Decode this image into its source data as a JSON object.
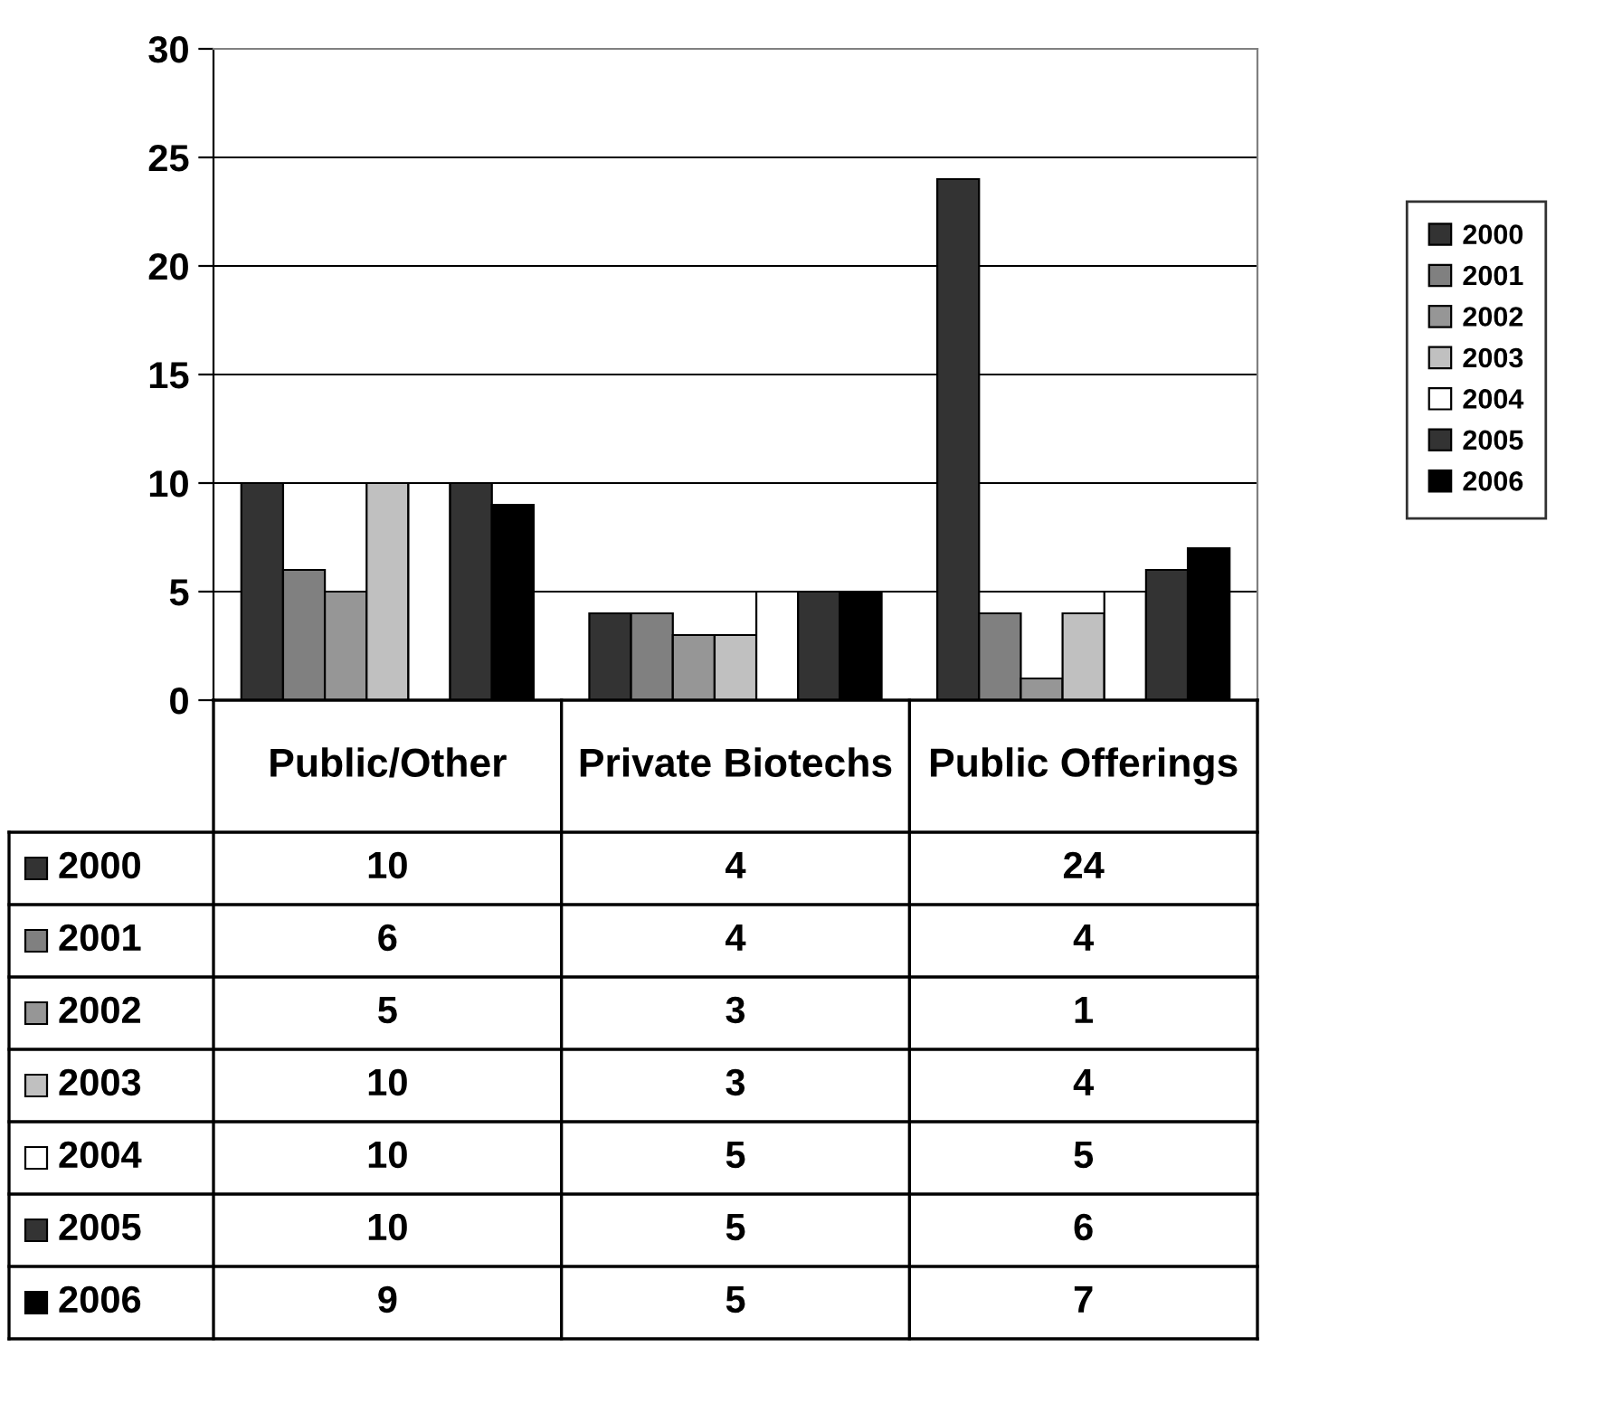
{
  "chart_data": {
    "type": "bar",
    "categories": [
      "Public/Other",
      "Private Biotechs",
      "Public Offerings"
    ],
    "series": [
      {
        "name": "2000",
        "color": "#333333",
        "values": [
          10,
          4,
          24
        ]
      },
      {
        "name": "2001",
        "color": "#808080",
        "values": [
          6,
          4,
          4
        ]
      },
      {
        "name": "2002",
        "color": "#969696",
        "values": [
          5,
          3,
          1
        ]
      },
      {
        "name": "2003",
        "color": "#c0c0c0",
        "values": [
          10,
          3,
          4
        ]
      },
      {
        "name": "2004",
        "color": "#ffffff",
        "values": [
          10,
          5,
          5
        ]
      },
      {
        "name": "2005",
        "color": "#333333",
        "values": [
          10,
          5,
          6
        ]
      },
      {
        "name": "2006",
        "color": "#000000",
        "values": [
          9,
          5,
          7
        ]
      }
    ],
    "ylim": [
      0,
      30
    ],
    "yticks": [
      0,
      5,
      10,
      15,
      20,
      25,
      30
    ],
    "grid": "y",
    "legend": "right",
    "data_labels": true
  }
}
